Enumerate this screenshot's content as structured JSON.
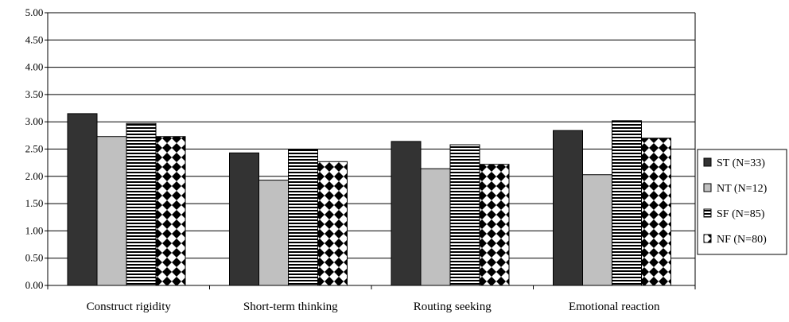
{
  "chart_data": {
    "type": "bar",
    "title": "",
    "xlabel": "",
    "ylabel": "",
    "ylim": [
      0,
      5
    ],
    "yticks": [
      "0.00",
      "0.50",
      "1.00",
      "1.50",
      "2.00",
      "2.50",
      "3.00",
      "3.50",
      "4.00",
      "4.50",
      "5.00"
    ],
    "grid": true,
    "legend_position": "right",
    "categories": [
      "Construct rigidity",
      "Short-term thinking",
      "Routing seeking",
      "Emotional reaction"
    ],
    "series": [
      {
        "name": "ST (N=33)",
        "values": [
          3.15,
          2.43,
          2.64,
          2.84
        ],
        "color": "#333333",
        "pattern": "solid-dark"
      },
      {
        "name": "NT (N=12)",
        "values": [
          2.73,
          1.93,
          2.14,
          2.03
        ],
        "color": "#c0c0c0",
        "pattern": "solid-light"
      },
      {
        "name": "SF (N=85)",
        "values": [
          2.97,
          2.5,
          2.58,
          3.02
        ],
        "color": "#ffffff",
        "pattern": "horizontal-stripes"
      },
      {
        "name": "NF (N=80)",
        "values": [
          2.73,
          2.27,
          2.22,
          2.7
        ],
        "color": "#000000",
        "pattern": "checkerboard"
      }
    ]
  }
}
